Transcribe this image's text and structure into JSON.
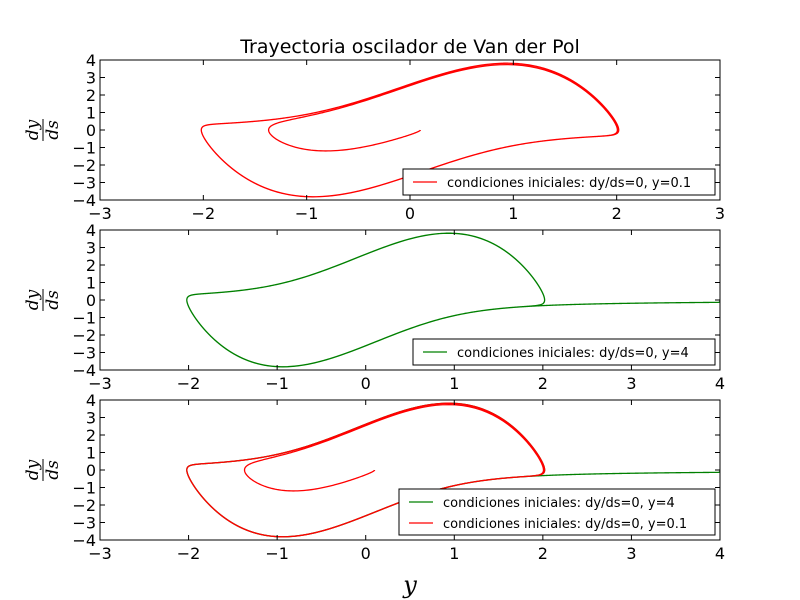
{
  "chart_data": [
    {
      "type": "line",
      "title": "Trayectoria oscilador de Van der Pol",
      "xlabel": "",
      "ylabel": {
        "numerator": "dy",
        "denominator": "ds"
      },
      "xlim": [
        -3,
        3
      ],
      "ylim": [
        -4,
        4
      ],
      "xticks": [
        "−3",
        "−2",
        "−1",
        "0",
        "1",
        "2",
        "3"
      ],
      "yticks": [
        "4",
        "3",
        "2",
        "1",
        "0",
        "−1",
        "−2",
        "−3",
        "−4"
      ],
      "grid": false,
      "legend_position": "lower-right",
      "series": [
        {
          "name": "condiciones iniciales: dy/ds=0, y=0.1",
          "color": "#ff0000",
          "initial": {
            "y": 0.1,
            "dyds": 0
          }
        }
      ]
    },
    {
      "type": "line",
      "title": "",
      "xlabel": "",
      "ylabel": {
        "numerator": "dy",
        "denominator": "ds"
      },
      "xlim": [
        -3,
        4
      ],
      "ylim": [
        -4,
        4
      ],
      "xticks": [
        "−3",
        "−2",
        "−1",
        "0",
        "1",
        "2",
        "3",
        "4"
      ],
      "yticks": [
        "4",
        "3",
        "2",
        "1",
        "0",
        "−1",
        "−2",
        "−3",
        "−4"
      ],
      "grid": false,
      "legend_position": "lower-right",
      "series": [
        {
          "name": "condiciones iniciales: dy/ds=0, y=4",
          "color": "#008000",
          "initial": {
            "y": 4,
            "dyds": 0
          }
        }
      ]
    },
    {
      "type": "line",
      "title": "",
      "xlabel": "y",
      "ylabel": {
        "numerator": "dy",
        "denominator": "ds"
      },
      "xlim": [
        -3,
        4
      ],
      "ylim": [
        -4,
        4
      ],
      "xticks": [
        "−3",
        "−2",
        "−1",
        "0",
        "1",
        "2",
        "3",
        "4"
      ],
      "yticks": [
        "4",
        "3",
        "2",
        "1",
        "0",
        "−1",
        "−2",
        "−3",
        "−4"
      ],
      "grid": false,
      "legend_position": "lower-right",
      "series": [
        {
          "name": "condiciones iniciales: dy/ds=0, y=4",
          "color": "#008000",
          "initial": {
            "y": 4,
            "dyds": 0
          }
        },
        {
          "name": "condiciones iniciales: dy/ds=0, y=0.1",
          "color": "#ff0000",
          "initial": {
            "y": 0.1,
            "dyds": 0
          }
        }
      ]
    }
  ]
}
